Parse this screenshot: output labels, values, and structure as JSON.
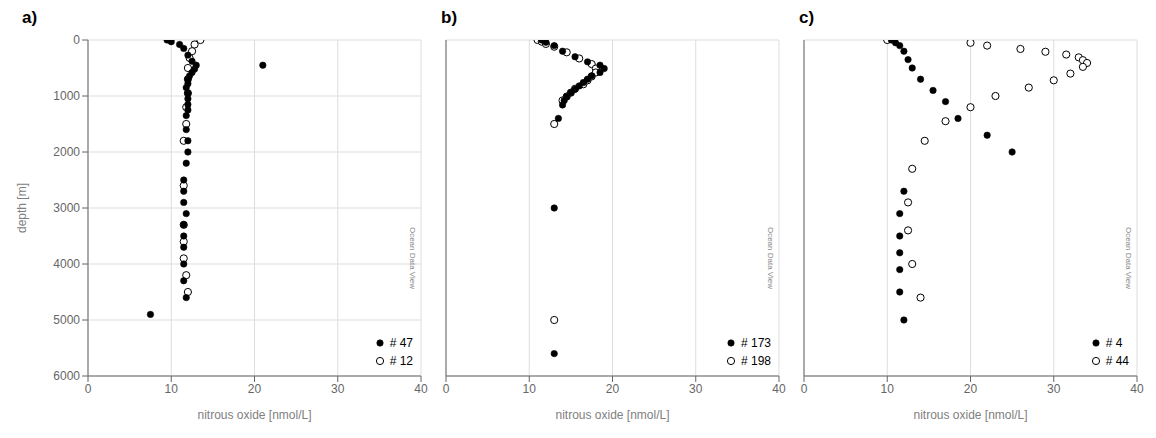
{
  "chart_data": [
    {
      "type": "scatter",
      "title": "a)",
      "xlabel": "nitrous oxide [nmol/L]",
      "ylabel": "depth [m]",
      "xlim": [
        0,
        40
      ],
      "xticks": [
        0,
        10,
        20,
        30,
        40
      ],
      "ylim": [
        6000,
        0
      ],
      "yticks": [
        0,
        1000,
        2000,
        3000,
        4000,
        5000,
        6000
      ],
      "grid": true,
      "legend": "lower right",
      "annotation": "Ocean Data View",
      "series": [
        {
          "name": "# 47",
          "color": "#000000",
          "marker": "filled_circle",
          "x": [
            9.5,
            10.0,
            11.0,
            11.5,
            12.0,
            12.5,
            13.0,
            12.8,
            12.5,
            12.2,
            12.0,
            12.0,
            11.8,
            12.0,
            12.0,
            12.0,
            12.0,
            11.8,
            11.8,
            12.0,
            12.0,
            11.8,
            11.5,
            11.5,
            11.5,
            11.8,
            11.5,
            11.5,
            11.5,
            11.5,
            11.5,
            11.8,
            7.5,
            21.0
          ],
          "values": [
            0,
            30,
            80,
            150,
            270,
            380,
            450,
            520,
            580,
            640,
            700,
            780,
            850,
            950,
            1050,
            1150,
            1250,
            1350,
            1600,
            1800,
            2000,
            2200,
            2500,
            2700,
            2900,
            3100,
            3300,
            3500,
            3700,
            4000,
            4300,
            4600,
            4900,
            450
          ]
        },
        {
          "name": "# 12",
          "color": "#000000",
          "marker": "open_circle",
          "x": [
            13.5,
            12.8,
            12.5,
            12.2,
            12.0,
            12.0,
            12.0,
            11.8,
            11.8,
            11.5,
            11.5,
            11.5,
            11.5,
            11.5,
            11.8,
            12.0
          ],
          "values": [
            0,
            80,
            200,
            320,
            500,
            700,
            950,
            1200,
            1500,
            1800,
            2600,
            3300,
            3600,
            3900,
            4200,
            4500
          ]
        }
      ]
    },
    {
      "type": "scatter",
      "title": "b)",
      "xlabel": "nitrous oxide [nmol/L]",
      "xlim": [
        0,
        40
      ],
      "xticks": [
        0,
        10,
        20,
        30,
        40
      ],
      "ylim": [
        6000,
        0
      ],
      "yticks": [
        0,
        1000,
        2000,
        3000,
        4000,
        5000,
        6000
      ],
      "grid": true,
      "legend": "lower right",
      "annotation": "Ocean Data View",
      "tick_labels": "x",
      "series": [
        {
          "name": "# 173",
          "color": "#000000",
          "marker": "filled_circle",
          "x": [
            11.5,
            12.0,
            13.0,
            14.0,
            15.5,
            17.0,
            18.5,
            19.0,
            18.5,
            17.5,
            17.0,
            16.5,
            16.0,
            15.5,
            15.0,
            14.5,
            14.2,
            14.0,
            13.5,
            13.0,
            13.0
          ],
          "values": [
            0,
            40,
            100,
            200,
            300,
            390,
            450,
            510,
            580,
            640,
            700,
            760,
            820,
            880,
            940,
            1010,
            1080,
            1160,
            1400,
            3000,
            5600
          ]
        },
        {
          "name": "# 198",
          "color": "#000000",
          "marker": "open_circle",
          "x": [
            11.0,
            11.5,
            12.0,
            13.0,
            14.5,
            16.0,
            17.5,
            18.0,
            18.0,
            17.5,
            17.0,
            16.5,
            15.5,
            15.0,
            14.5,
            14.0,
            13.0,
            13.0
          ],
          "values": [
            0,
            30,
            70,
            120,
            220,
            330,
            430,
            510,
            580,
            650,
            720,
            790,
            870,
            940,
            1010,
            1080,
            1500,
            5000
          ]
        }
      ]
    },
    {
      "type": "scatter",
      "title": "c)",
      "xlabel": "nitrous oxide [nmol/L]",
      "xlim": [
        0,
        40
      ],
      "xticks": [
        0,
        10,
        20,
        30,
        40
      ],
      "ylim": [
        6000,
        0
      ],
      "yticks": [
        0,
        1000,
        2000,
        3000,
        4000,
        5000,
        6000
      ],
      "grid": true,
      "legend": "lower right",
      "annotation": "Ocean Data View",
      "tick_labels": "x",
      "series": [
        {
          "name": "# 4",
          "color": "#000000",
          "marker": "filled_circle",
          "x": [
            10.5,
            11.0,
            11.5,
            12.0,
            12.5,
            13.0,
            14.0,
            15.5,
            17.0,
            18.5,
            22.0,
            25.0,
            12.0,
            11.5,
            11.5,
            11.5,
            11.5,
            11.5,
            12.0
          ],
          "values": [
            0,
            50,
            100,
            200,
            350,
            500,
            700,
            900,
            1100,
            1400,
            1700,
            2000,
            2700,
            3100,
            3500,
            3800,
            4100,
            4500,
            5000
          ]
        },
        {
          "name": "# 44",
          "color": "#000000",
          "marker": "open_circle",
          "x": [
            10.0,
            20.0,
            22.0,
            26.0,
            29.0,
            31.5,
            33.0,
            33.5,
            34.0,
            33.5,
            32.0,
            30.0,
            27.0,
            23.0,
            20.0,
            17.0,
            14.5,
            13.0,
            12.5,
            12.5,
            13.0,
            14.0
          ],
          "values": [
            0,
            50,
            100,
            160,
            210,
            260,
            310,
            360,
            410,
            480,
            600,
            720,
            850,
            1000,
            1200,
            1450,
            1800,
            2300,
            2900,
            3400,
            4000,
            4600
          ]
        }
      ]
    }
  ]
}
